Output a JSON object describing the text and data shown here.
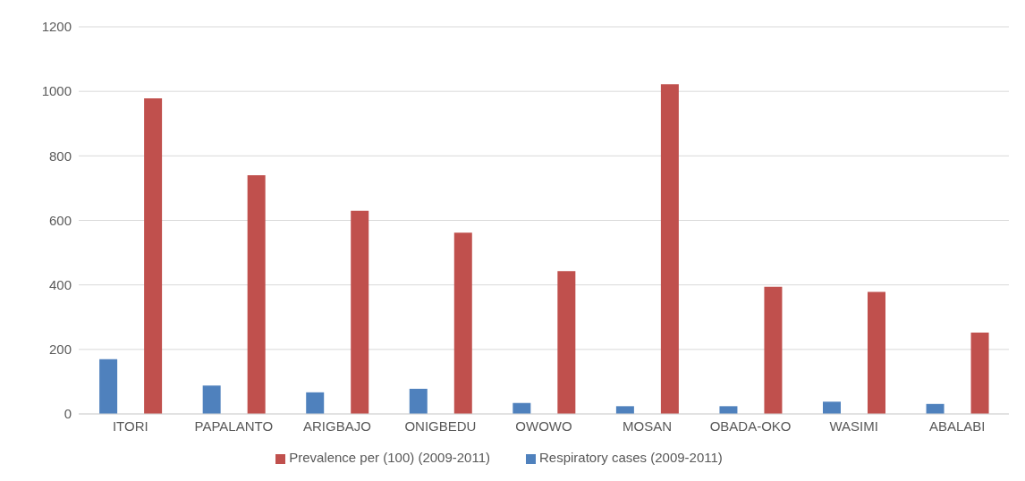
{
  "chart_data": {
    "type": "bar",
    "categories": [
      "ITORI",
      "PAPALANTO",
      "ARIGBAJO",
      "ONIGBEDU",
      "OWOWO",
      "MOSAN",
      "OBADA-OKO",
      "WASIMI",
      "ABALABI"
    ],
    "series": [
      {
        "name": "Respiratory cases (2009-2011)",
        "color": "#4f81bd",
        "values": [
          170,
          88,
          67,
          78,
          34,
          24,
          24,
          38,
          31
        ]
      },
      {
        "name": "Prevalence  per (100) (2009-2011)",
        "color": "#c0504d",
        "values": [
          978,
          740,
          630,
          562,
          443,
          1022,
          394,
          378,
          252
        ]
      }
    ],
    "ylim": [
      0,
      1200
    ],
    "yticks": [
      0,
      200,
      400,
      600,
      800,
      1000,
      1200
    ],
    "grid": "y",
    "legend": "bottom"
  }
}
